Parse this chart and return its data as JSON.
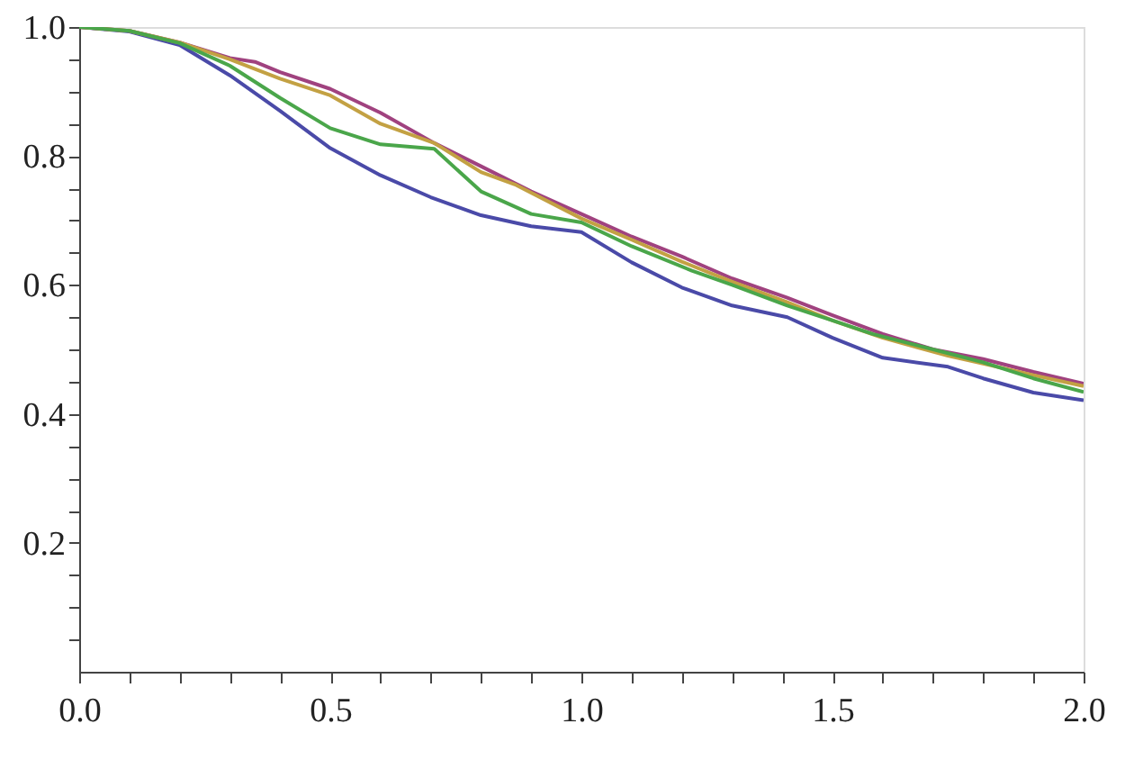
{
  "chart_data": {
    "type": "line",
    "xlim": [
      0,
      2.0
    ],
    "ylim": [
      0,
      1.0
    ],
    "xticks": [
      {
        "value": 0,
        "label": "0.0"
      },
      {
        "value": 0.1,
        "label": null
      },
      {
        "value": 0.2,
        "label": null
      },
      {
        "value": 0.3,
        "label": null
      },
      {
        "value": 0.4,
        "label": null
      },
      {
        "value": 0.5,
        "label": "0.5"
      },
      {
        "value": 0.6,
        "label": null
      },
      {
        "value": 0.7,
        "label": null
      },
      {
        "value": 0.8,
        "label": null
      },
      {
        "value": 0.9,
        "label": null
      },
      {
        "value": 1.0,
        "label": "1.0"
      },
      {
        "value": 1.1,
        "label": null
      },
      {
        "value": 1.2,
        "label": null
      },
      {
        "value": 1.3,
        "label": null
      },
      {
        "value": 1.4,
        "label": null
      },
      {
        "value": 1.5,
        "label": "1.5"
      },
      {
        "value": 1.6,
        "label": null
      },
      {
        "value": 1.7,
        "label": null
      },
      {
        "value": 1.8,
        "label": null
      },
      {
        "value": 1.9,
        "label": null
      },
      {
        "value": 2.0,
        "label": "2.0"
      }
    ],
    "yticks": [
      {
        "value": 0.05,
        "label": null
      },
      {
        "value": 0.1,
        "label": null
      },
      {
        "value": 0.15,
        "label": null
      },
      {
        "value": 0.2,
        "label": "0.2"
      },
      {
        "value": 0.25,
        "label": null
      },
      {
        "value": 0.3,
        "label": null
      },
      {
        "value": 0.35,
        "label": null
      },
      {
        "value": 0.4,
        "label": "0.4"
      },
      {
        "value": 0.45,
        "label": null
      },
      {
        "value": 0.5,
        "label": null
      },
      {
        "value": 0.55,
        "label": null
      },
      {
        "value": 0.6,
        "label": "0.6"
      },
      {
        "value": 0.65,
        "label": null
      },
      {
        "value": 0.7,
        "label": null
      },
      {
        "value": 0.75,
        "label": null
      },
      {
        "value": 0.8,
        "label": "0.8"
      },
      {
        "value": 0.85,
        "label": null
      },
      {
        "value": 0.9,
        "label": null
      },
      {
        "value": 0.95,
        "label": null
      },
      {
        "value": 1.0,
        "label": "1.0"
      }
    ],
    "grid": false,
    "marker": "none",
    "line_style": "solid",
    "series": [
      {
        "color": "#4a4aa8",
        "x": [
          0,
          0.1,
          0.2,
          0.3,
          0.4,
          0.5,
          0.6,
          0.7,
          0.8,
          0.9,
          1.0,
          1.1,
          1.2,
          1.3,
          1.41,
          1.5,
          1.6,
          1.73,
          1.8,
          1.9,
          2.0
        ],
        "values": [
          1.0,
          0.993,
          0.972,
          0.925,
          0.87,
          0.812,
          0.77,
          0.736,
          0.708,
          0.691,
          0.682,
          0.635,
          0.596,
          0.568,
          0.55,
          0.518,
          0.487,
          0.473,
          0.455,
          0.433,
          0.421
        ]
      },
      {
        "color": "#a0427f",
        "x": [
          0,
          0.1,
          0.2,
          0.3,
          0.35,
          0.4,
          0.5,
          0.6,
          0.707,
          0.8,
          0.9,
          1.0,
          1.1,
          1.2,
          1.3,
          1.41,
          1.5,
          1.6,
          1.7,
          1.8,
          1.9,
          2.0
        ],
        "values": [
          1.0,
          0.994,
          0.976,
          0.952,
          0.946,
          0.93,
          0.904,
          0.867,
          0.82,
          0.784,
          0.745,
          0.71,
          0.675,
          0.644,
          0.61,
          0.58,
          0.553,
          0.524,
          0.5,
          0.485,
          0.465,
          0.447
        ]
      },
      {
        "color": "#c3a143",
        "x": [
          0,
          0.1,
          0.2,
          0.3,
          0.4,
          0.5,
          0.6,
          0.707,
          0.8,
          0.87,
          1.0,
          1.1,
          1.2,
          1.3,
          1.41,
          1.5,
          1.6,
          1.73,
          1.8,
          1.9,
          2.0
        ],
        "values": [
          1.0,
          0.994,
          0.976,
          0.95,
          0.92,
          0.894,
          0.85,
          0.82,
          0.775,
          0.755,
          0.703,
          0.67,
          0.636,
          0.605,
          0.573,
          0.545,
          0.518,
          0.49,
          0.478,
          0.46,
          0.443
        ]
      },
      {
        "color": "#4aa64a",
        "x": [
          0,
          0.1,
          0.2,
          0.3,
          0.4,
          0.5,
          0.6,
          0.707,
          0.8,
          0.9,
          1.0,
          1.1,
          1.22,
          1.3,
          1.41,
          1.5,
          1.58,
          1.73,
          1.8,
          1.9,
          2.0
        ],
        "values": [
          1.0,
          0.994,
          0.975,
          0.94,
          0.89,
          0.843,
          0.818,
          0.811,
          0.745,
          0.71,
          0.697,
          0.66,
          0.622,
          0.6,
          0.568,
          0.545,
          0.524,
          0.494,
          0.48,
          0.455,
          0.434
        ]
      }
    ]
  }
}
